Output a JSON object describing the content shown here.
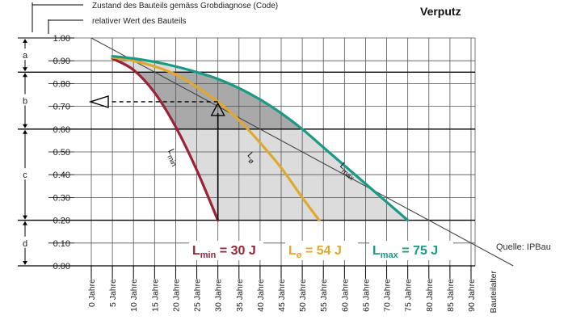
{
  "chart_data": {
    "type": "line",
    "title": "Verputz",
    "legend_top": [
      "Zustand des Bauteils gemäss Grobdiagnose (Code)",
      "relativer Wert des Bauteils"
    ],
    "xlabel": "Bauteilalter",
    "x_tick_labels": [
      "0 Jahre",
      "5 Jahre",
      "10 Jahre",
      "15 Jahre",
      "20 Jahre",
      "25 Jahre",
      "30 Jahre",
      "35 Jahre",
      "40 Jahre",
      "45 Jahre",
      "50 Jahre",
      "55 Jahre",
      "60 Jahre",
      "65 Jahre",
      "70 Jahre",
      "75 Jahre",
      "80 Jahre",
      "85 Jahre",
      "90 Jahre"
    ],
    "x_tick_values": [
      0,
      5,
      10,
      15,
      20,
      25,
      30,
      35,
      40,
      45,
      50,
      55,
      60,
      65,
      70,
      75,
      80,
      85,
      90
    ],
    "y_tick_labels": [
      "0.00",
      "0.10",
      "0.20",
      "0.30",
      "0.40",
      "0.50",
      "0.60",
      "0.70",
      "0.80",
      "0.90",
      "1.00"
    ],
    "y_tick_values": [
      0,
      0.1,
      0.2,
      0.3,
      0.4,
      0.5,
      0.6,
      0.7,
      0.8,
      0.9,
      1.0
    ],
    "xlim": [
      0,
      90
    ],
    "ylim": [
      0,
      1
    ],
    "grid": true,
    "condition_classes": [
      {
        "label": "a",
        "from": 0.85,
        "to": 1.0
      },
      {
        "label": "b",
        "from": 0.6,
        "to": 0.85
      },
      {
        "label": "c",
        "from": 0.2,
        "to": 0.6
      },
      {
        "label": "d",
        "from": 0.0,
        "to": 0.2
      }
    ],
    "series": [
      {
        "label_main": "L",
        "label_sub": "min",
        "color": "#9b2335",
        "x": [
          5,
          10,
          15,
          20,
          25,
          30
        ],
        "y": [
          0.91,
          0.86,
          0.76,
          0.61,
          0.42,
          0.2
        ]
      },
      {
        "label_main": "L",
        "label_sub": "ø",
        "color": "#e0a82e",
        "x": [
          5,
          10,
          15,
          20,
          25,
          30,
          35,
          40,
          45,
          50,
          54
        ],
        "y": [
          0.915,
          0.9,
          0.875,
          0.84,
          0.785,
          0.72,
          0.64,
          0.54,
          0.43,
          0.3,
          0.2
        ]
      },
      {
        "label_main": "L",
        "label_sub": "max",
        "color": "#1a9a84",
        "x": [
          5,
          10,
          15,
          20,
          25,
          30,
          35,
          40,
          45,
          50,
          55,
          60,
          65,
          70,
          75
        ],
        "y": [
          0.92,
          0.91,
          0.895,
          0.875,
          0.85,
          0.82,
          0.78,
          0.73,
          0.67,
          0.6,
          0.52,
          0.44,
          0.36,
          0.28,
          0.2
        ]
      }
    ],
    "reference_line": {
      "x": [
        0,
        100
      ],
      "y": [
        1.0,
        0.0
      ],
      "color": "#444444"
    },
    "annotation": {
      "x": 30,
      "y": 0.72
    },
    "legend_bottom": [
      {
        "main": "L",
        "sub": "min",
        "rest": " = 30 J",
        "color": "#9b2335"
      },
      {
        "main": "L",
        "sub": "ø",
        "rest": "  = 54 J",
        "color": "#e0a82e"
      },
      {
        "main": "L",
        "sub": "max",
        "rest": " = 75 J",
        "color": "#1a9a84"
      }
    ],
    "source": "Quelle: IPBau"
  },
  "colors": {
    "grid": "#555555",
    "shade_dark": "#a9a9a9",
    "shade_light": "#dcdcdc"
  }
}
